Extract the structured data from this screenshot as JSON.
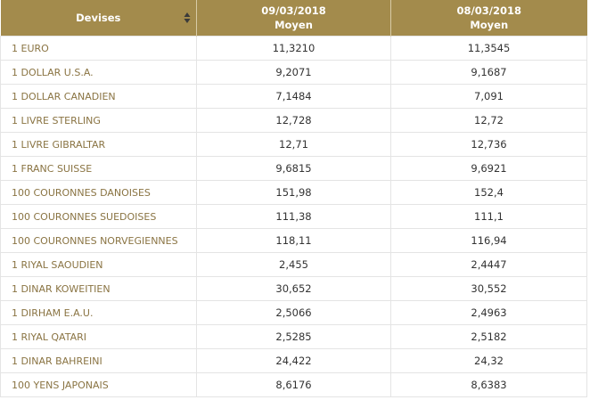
{
  "table": {
    "header": {
      "first": "Devises",
      "columns": [
        {
          "date": "09/03/2018",
          "label": "Moyen"
        },
        {
          "date": "08/03/2018",
          "label": "Moyen"
        }
      ]
    },
    "rows": [
      [
        "1 EURO",
        "11,3210",
        "11,3545"
      ],
      [
        "1 DOLLAR U.S.A.",
        "9,2071",
        "9,1687"
      ],
      [
        "1 DOLLAR CANADIEN",
        "7,1484",
        "7,091"
      ],
      [
        "1 LIVRE STERLING",
        "12,728",
        "12,72"
      ],
      [
        "1 LIVRE GIBRALTAR",
        "12,71",
        "12,736"
      ],
      [
        "1 FRANC SUISSE",
        "9,6815",
        "9,6921"
      ],
      [
        "100 COURONNES DANOISES",
        "151,98",
        "152,4"
      ],
      [
        "100 COURONNES SUEDOISES",
        "111,38",
        "111,1"
      ],
      [
        "100 COURONNES NORVEGIENNES",
        "118,11",
        "116,94"
      ],
      [
        "1 RIYAL SAOUDIEN",
        "2,455",
        "2,4447"
      ],
      [
        "1 DINAR KOWEITIEN",
        "30,652",
        "30,552"
      ],
      [
        "1 DIRHAM E.A.U.",
        "2,5066",
        "2,4963"
      ],
      [
        "1 RIYAL QATARI",
        "2,5285",
        "2,5182"
      ],
      [
        "1 DINAR BAHREINI",
        "24,422",
        "24,32"
      ],
      [
        "100 YENS JAPONAIS",
        "8,6176",
        "8,6383"
      ]
    ]
  }
}
